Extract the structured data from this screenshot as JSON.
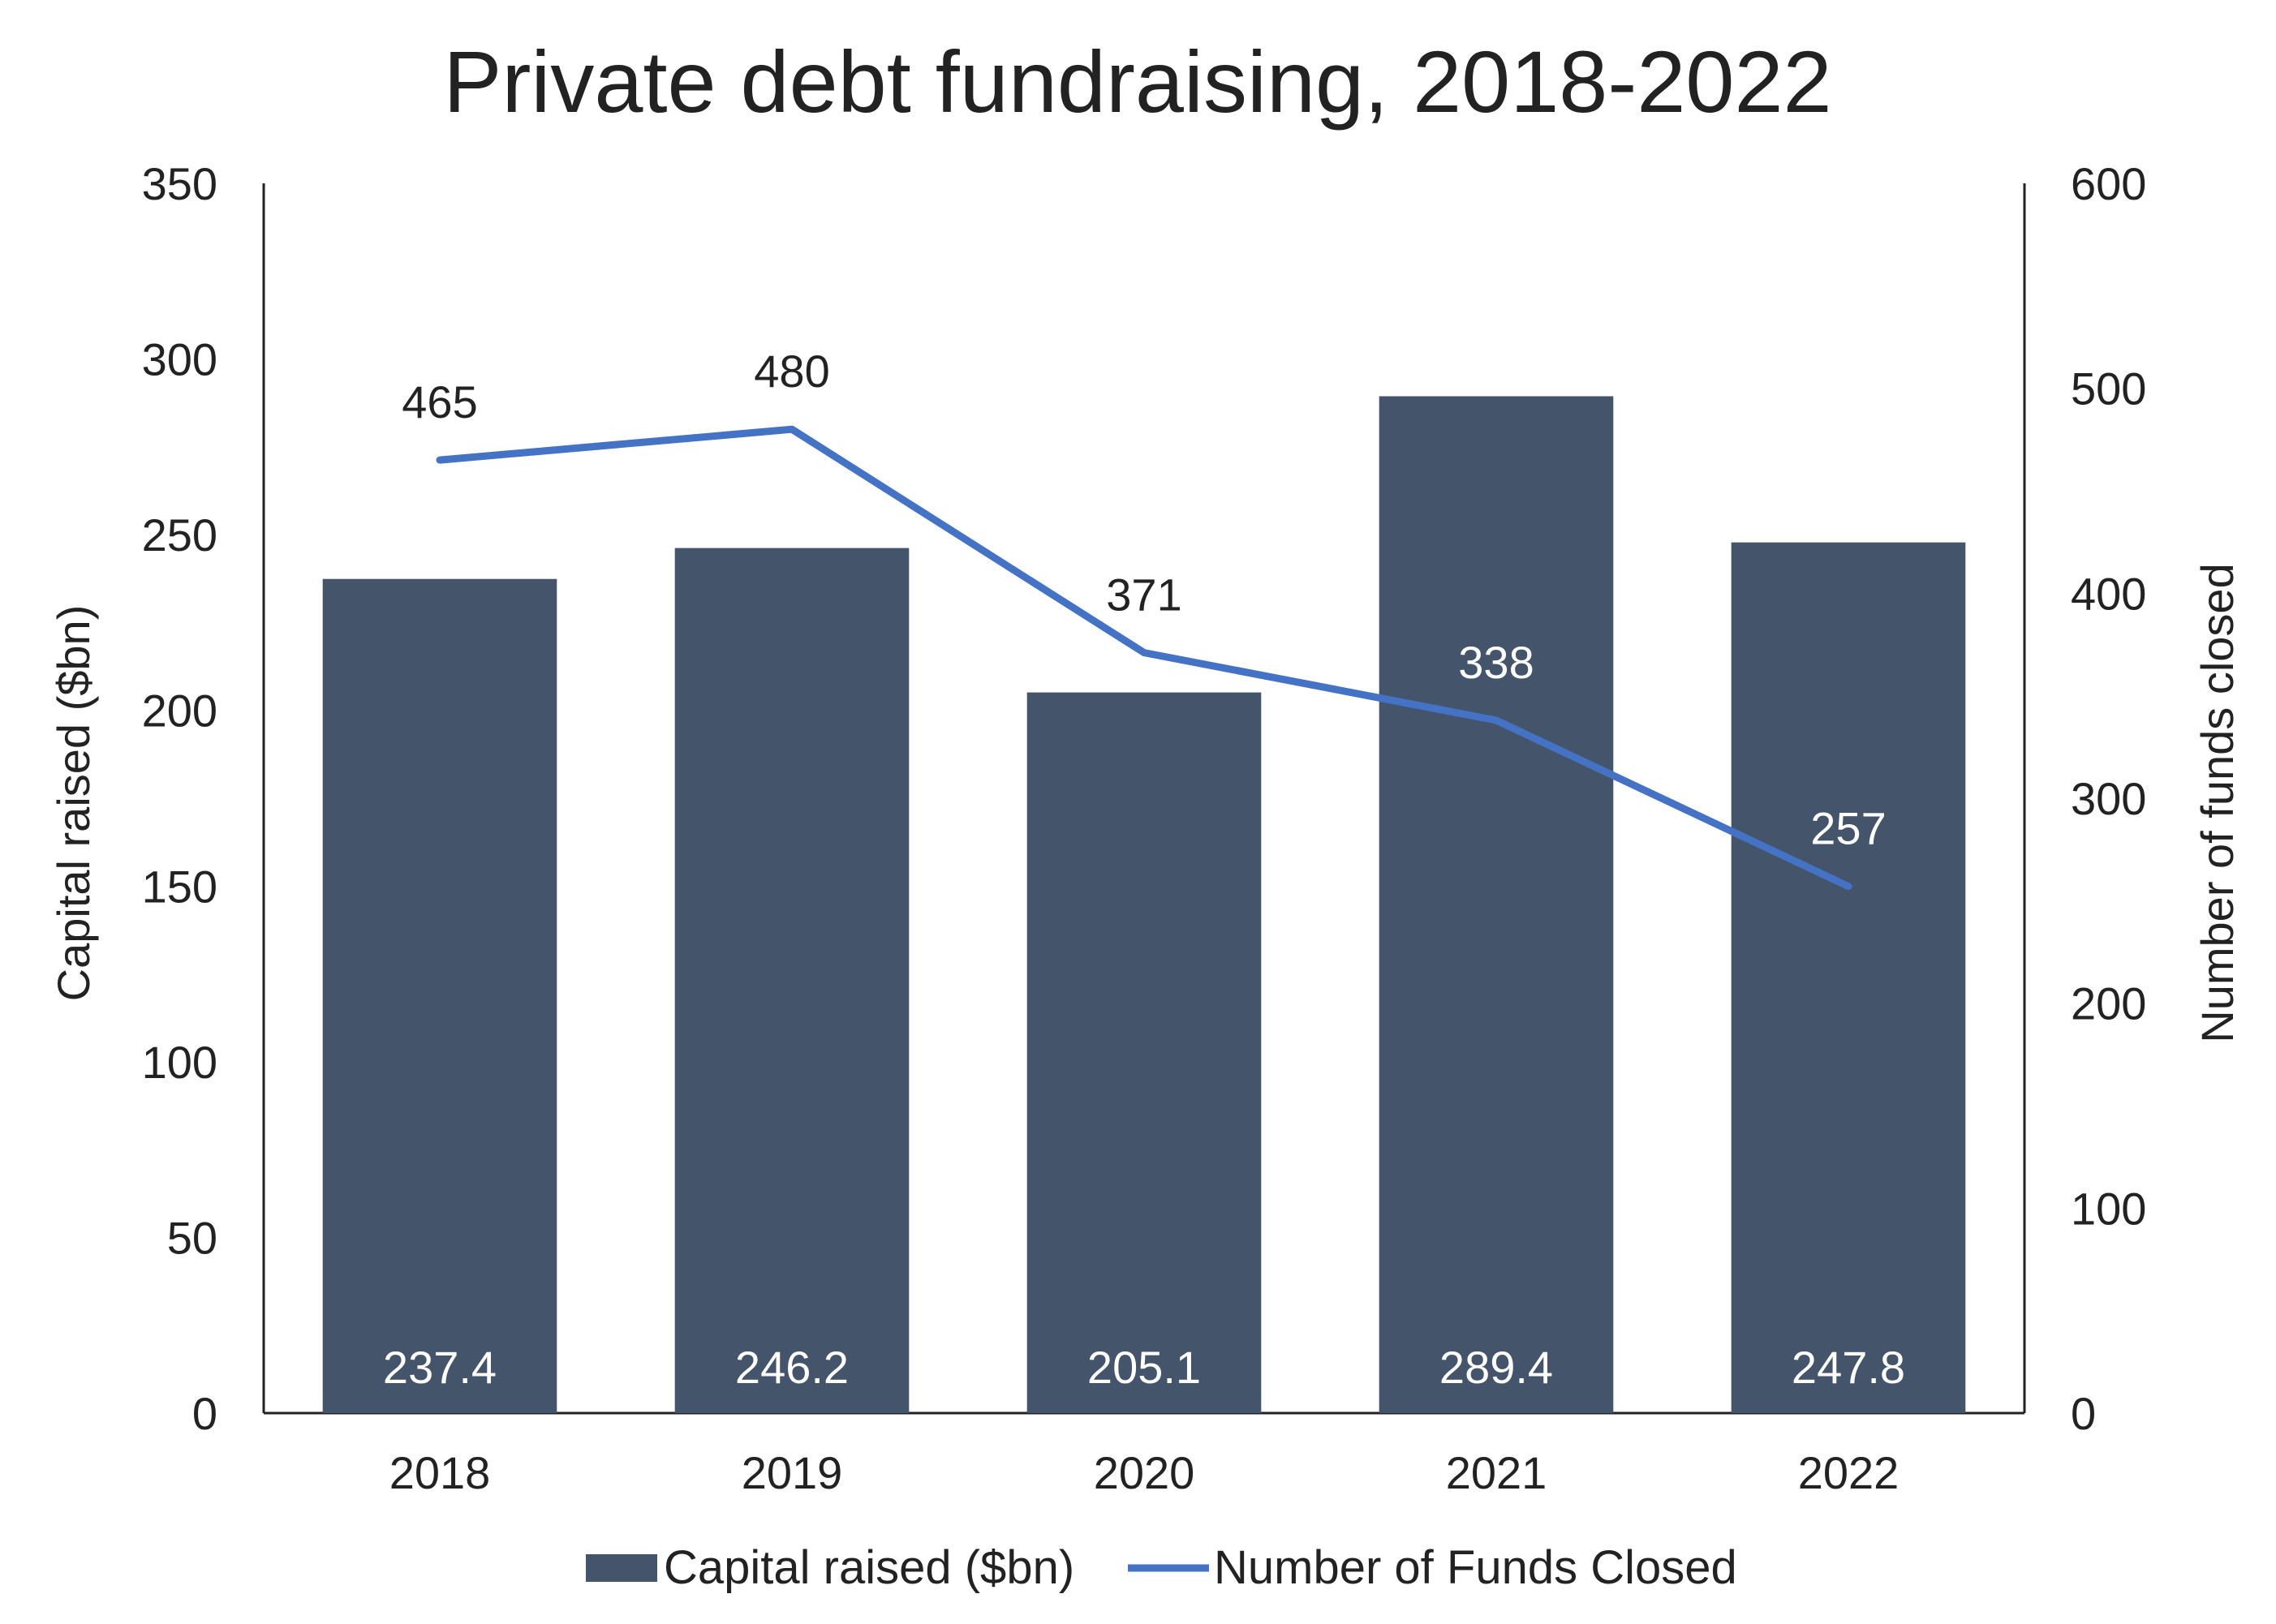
{
  "chart_data": {
    "type": "bar",
    "title": "Private debt fundraising, 2018-2022",
    "categories": [
      "2018",
      "2019",
      "2020",
      "2021",
      "2022"
    ],
    "series": [
      {
        "name": "Capital raised ($bn)",
        "type": "bar",
        "axis": "left",
        "color": "#44546A",
        "values": [
          237.4,
          246.2,
          205.1,
          289.4,
          247.8
        ],
        "labels": [
          "237.4",
          "246.2",
          "205.1",
          "289.4",
          "247.8"
        ]
      },
      {
        "name": "Number of Funds Closed",
        "type": "line",
        "axis": "right",
        "color": "#4472C4",
        "values": [
          465,
          480,
          371,
          338,
          257
        ],
        "labels": [
          "465",
          "480",
          "371",
          "338",
          "257"
        ]
      }
    ],
    "y_left": {
      "label": "Capital raised ($bn)",
      "range": [
        0,
        350
      ],
      "ticks": [
        0,
        50,
        100,
        150,
        200,
        250,
        300,
        350
      ]
    },
    "y_right": {
      "label": "Number of funds closed",
      "range": [
        0,
        600
      ],
      "ticks": [
        0,
        100,
        200,
        300,
        400,
        500,
        600
      ]
    },
    "grid": false,
    "legend": "bottom"
  }
}
